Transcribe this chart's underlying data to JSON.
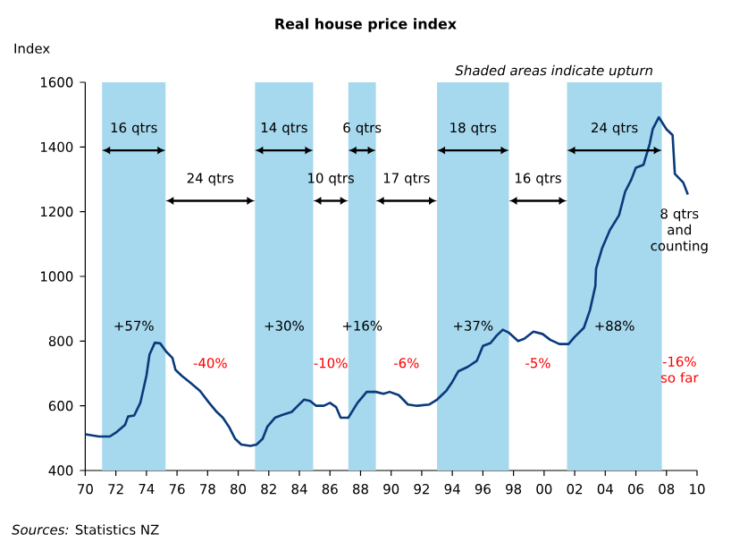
{
  "chart_data": {
    "type": "line",
    "title": "Real house price index",
    "ylabel": "Index",
    "color": "#0a3a7a",
    "x": [
      1970,
      1970.9,
      1971.6,
      1972.0,
      1972.6,
      1972.8,
      1973.2,
      1973.6,
      1974.0,
      1974.2,
      1974.55,
      1974.9,
      1975.3,
      1975.7,
      1975.9,
      1976.3,
      1976.9,
      1977.5,
      1978.1,
      1978.6,
      1979.0,
      1979.4,
      1979.8,
      1980.2,
      1980.8,
      1981.2,
      1981.6,
      1981.9,
      1982.4,
      1982.9,
      1983.5,
      1983.9,
      1984.3,
      1984.7,
      1985.1,
      1985.6,
      1986.0,
      1986.4,
      1986.7,
      1987.2,
      1987.8,
      1988.4,
      1989.0,
      1989.5,
      1989.9,
      1990.5,
      1991.1,
      1991.7,
      1992.5,
      1993.0,
      1993.6,
      1994.0,
      1994.4,
      1995.0,
      1995.6,
      1996.0,
      1996.5,
      1996.9,
      1997.3,
      1997.7,
      1998.3,
      1998.7,
      1999.3,
      1999.9,
      2000.4,
      2001.0,
      2001.6,
      2002.0,
      2002.6,
      2003.0,
      2003.35,
      2003.4,
      2003.8,
      2004.3,
      2004.9,
      2005.3,
      2005.7,
      2006.0,
      2006.5,
      2006.9,
      2007.1,
      2007.5,
      2008.0,
      2008.4,
      2008.55,
      2009.1,
      2009.4
    ],
    "values": [
      512,
      505,
      505,
      517,
      541,
      567,
      570,
      609,
      693,
      758,
      795,
      793,
      767,
      748,
      711,
      693,
      670,
      646,
      609,
      581,
      563,
      535,
      498,
      480,
      476,
      480,
      498,
      535,
      563,
      572,
      581,
      600,
      619,
      615,
      600,
      600,
      609,
      596,
      563,
      563,
      609,
      643,
      643,
      637,
      643,
      633,
      604,
      600,
      604,
      619,
      646,
      674,
      707,
      720,
      739,
      785,
      794,
      817,
      835,
      826,
      800,
      807,
      829,
      822,
      804,
      791,
      791,
      813,
      841,
      896,
      970,
      1024,
      1088,
      1143,
      1189,
      1262,
      1299,
      1336,
      1345,
      1409,
      1455,
      1492,
      1455,
      1437,
      1317,
      1290,
      1253
    ],
    "xlim": [
      1970,
      2010
    ],
    "ylim": [
      400,
      1600
    ],
    "xticks": [
      {
        "value": 1970,
        "label": "70"
      },
      {
        "value": 1972,
        "label": "72"
      },
      {
        "value": 1974,
        "label": "74"
      },
      {
        "value": 1976,
        "label": "76"
      },
      {
        "value": 1978,
        "label": "78"
      },
      {
        "value": 1980,
        "label": "80"
      },
      {
        "value": 1982,
        "label": "82"
      },
      {
        "value": 1984,
        "label": "84"
      },
      {
        "value": 1986,
        "label": "86"
      },
      {
        "value": 1988,
        "label": "88"
      },
      {
        "value": 1990,
        "label": "90"
      },
      {
        "value": 1992,
        "label": "92"
      },
      {
        "value": 1994,
        "label": "94"
      },
      {
        "value": 1996,
        "label": "96"
      },
      {
        "value": 1998,
        "label": "98"
      },
      {
        "value": 2000,
        "label": "00"
      },
      {
        "value": 2002,
        "label": "02"
      },
      {
        "value": 2004,
        "label": "04"
      },
      {
        "value": 2006,
        "label": "06"
      },
      {
        "value": 2008,
        "label": "08"
      },
      {
        "value": 2010,
        "label": "10"
      }
    ],
    "yticks": [
      400,
      600,
      800,
      1000,
      1200,
      1400,
      1600
    ],
    "bands": [
      {
        "axis": "x",
        "from": 1971.1,
        "to": 1975.25,
        "color": "#a6d8ee"
      },
      {
        "axis": "x",
        "from": 1981.1,
        "to": 1984.9,
        "color": "#a6d8ee"
      },
      {
        "axis": "x",
        "from": 1987.2,
        "to": 1989.0,
        "color": "#a6d8ee"
      },
      {
        "axis": "x",
        "from": 1993.0,
        "to": 1997.7,
        "color": "#a6d8ee"
      },
      {
        "axis": "x",
        "from": 2001.5,
        "to": 2007.7,
        "color": "#a6d8ee"
      }
    ],
    "annotations": [
      "16 qtrs",
      "24 qtrs",
      "14 qtrs",
      "10 qtrs",
      "6 qtrs",
      "17 qtrs",
      "18 qtrs",
      "16 qtrs",
      "24 qtrs",
      "8 qtrs and counting",
      "+57%",
      "-40%",
      "+30%",
      "-10%",
      "+16%",
      "-6%",
      "+37%",
      "-5%",
      "+88%",
      "-16% so far",
      "Shaded areas indicate upturn",
      "*Sources:* Statistics NZ"
    ]
  }
}
